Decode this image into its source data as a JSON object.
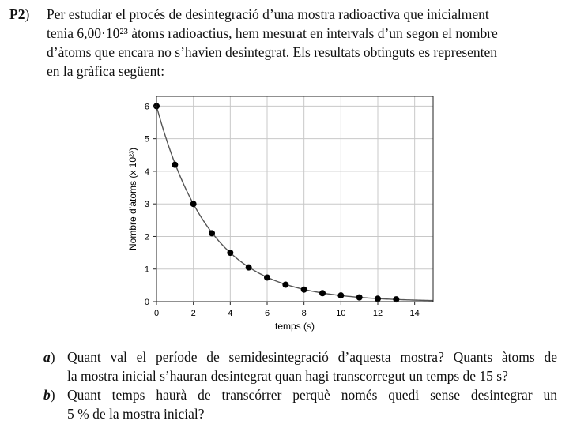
{
  "problem": {
    "number": "P2",
    "intro_lines": [
      "Per estudiar el procés de desintegració d’una mostra radioactiva que inicialment",
      "tenia 6,00·10²³ àtoms radioactius, hem mesurat en intervals d’un segon el nombre",
      "d’àtoms que encara no s’havien desintegrat. Els resultats obtinguts es representen",
      "en la gràfica següent:"
    ],
    "questions": [
      {
        "label": "a",
        "lines": [
          "Quant val el període de semidesintegració d’aquesta mostra? Quants àtoms de",
          "la mostra inicial s’hauran desintegrat quan hagi transcorregut un temps de 15 s?"
        ]
      },
      {
        "label": "b",
        "lines": [
          "Quant temps haurà de transcórrer perquè només quedi sense desintegrar un",
          "5 % de la mostra inicial?"
        ]
      }
    ]
  },
  "chart_data": {
    "type": "scatter",
    "xlabel": "temps (s)",
    "ylabel": "Nombre d’àtoms (x 10²³)",
    "xlim": [
      0,
      15
    ],
    "ylim": [
      0,
      6.3
    ],
    "x_ticks": [
      "0",
      "2",
      "4",
      "6",
      "8",
      "10",
      "12",
      "14"
    ],
    "y_ticks": [
      "0",
      "1",
      "2",
      "3",
      "4",
      "5",
      "6"
    ],
    "grid": true,
    "fit_curve": {
      "model": "exponential decay",
      "N0": 6.0,
      "half_life": 2.0
    },
    "series": [
      {
        "x": [
          0,
          1,
          2,
          3,
          4,
          5,
          6,
          7,
          8,
          9,
          10,
          11,
          12,
          13
        ],
        "y": [
          6.0,
          4.2,
          3.0,
          2.1,
          1.5,
          1.05,
          0.74,
          0.52,
          0.37,
          0.26,
          0.19,
          0.13,
          0.09,
          0.07
        ]
      }
    ],
    "colors": {
      "points": "#000000",
      "curve": "#555555",
      "grid": "#c8c8c8"
    }
  }
}
